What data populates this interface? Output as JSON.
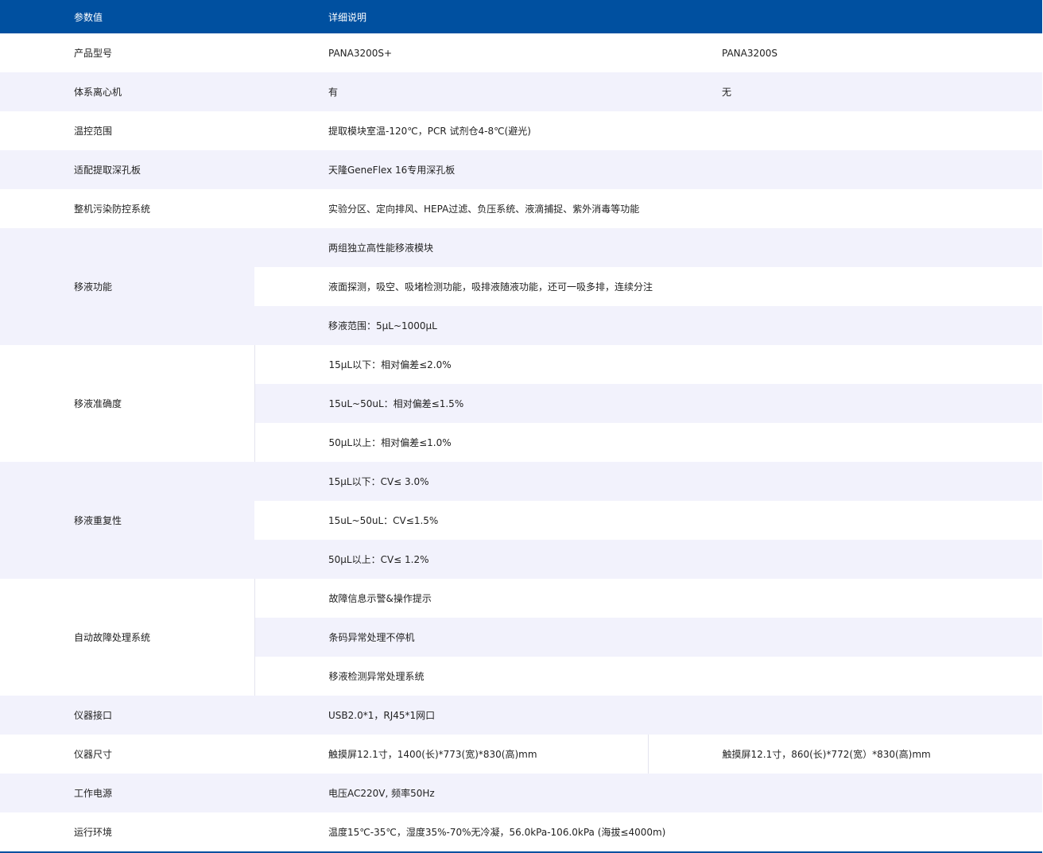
{
  "header": {
    "param": "参数值",
    "detail": "详细说明"
  },
  "rows": {
    "model": {
      "label": "产品型号",
      "a": "PANA3200S+",
      "b": "PANA3200S"
    },
    "centrifuge": {
      "label": "体系离心机",
      "a": "有",
      "b": "无"
    },
    "temp": {
      "label": "温控范围",
      "value": "提取模块室温-120℃，PCR 试剂仓4-8℃(避光)"
    },
    "plate": {
      "label": "适配提取深孔板",
      "value": "天隆GeneFlex 16专用深孔板"
    },
    "contam": {
      "label": "整机污染防控系统",
      "value": "实验分区、定向排风、HEPA过滤、负压系统、液滴捕捉、紫外消毒等功能"
    },
    "pipetting": {
      "label": "移液功能",
      "values": [
        "两组独立高性能移液模块",
        "液面探测，吸空、吸堵检测功能，吸排液随液功能，还可一吸多排，连续分注",
        "移液范围：5μL~1000μL"
      ]
    },
    "accuracy": {
      "label": "移液准确度",
      "values": [
        "15μL以下：相对偏差≤2.0%",
        "15uL~50uL：相对偏差≤1.5%",
        "50μL以上：相对偏差≤1.0%"
      ]
    },
    "repeat": {
      "label": "移液重复性",
      "values": [
        "15μL以下：CV≤ 3.0%",
        "15uL~50uL：CV≤1.5%",
        "50μL以上：CV≤ 1.2%"
      ]
    },
    "fault": {
      "label": "自动故障处理系统",
      "values": [
        "故障信息示警&操作提示",
        "条码异常处理不停机",
        "移液检测异常处理系统"
      ]
    },
    "interface": {
      "label": "仪器接口",
      "value": "USB2.0*1，RJ45*1网口"
    },
    "size": {
      "label": "仪器尺寸",
      "a": "触摸屏12.1寸，1400(长)*773(宽)*830(高)mm",
      "b": "触摸屏12.1寸，860(长)*772(宽）*830(高)mm"
    },
    "power": {
      "label": "工作电源",
      "value": "电压AC220V, 频率50Hz"
    },
    "env": {
      "label": "运行环境",
      "value": "温度15℃-35℃，湿度35%-70%无冷凝，56.0kPa-106.0kPa  (海拔≤4000m)"
    }
  },
  "colors": {
    "header": "#0050a0",
    "stripe": "#f2f2fc"
  }
}
